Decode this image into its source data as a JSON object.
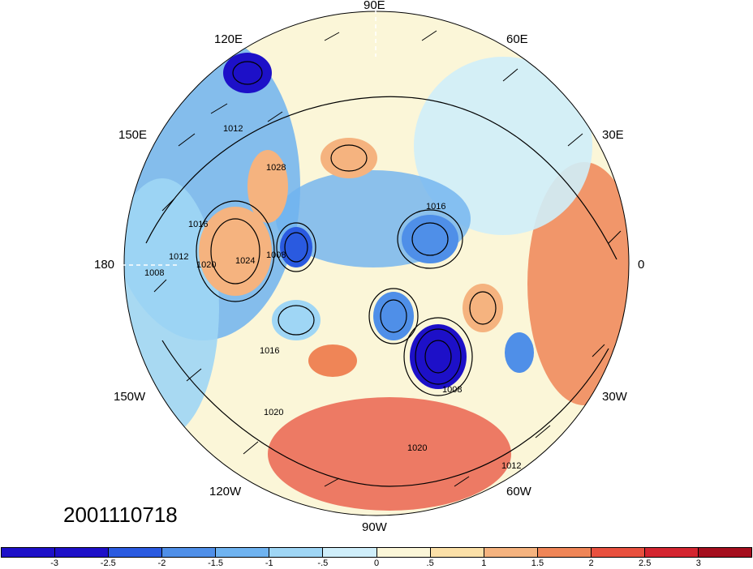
{
  "title": "",
  "timestamp": "2001110718",
  "longitude_labels": {
    "n": "90E",
    "s": "90W",
    "e": "0",
    "w": "180",
    "ne": "60E",
    "nw": "120E",
    "ene": "30E",
    "wnw": "150E",
    "ese": "30W",
    "wsw": "150W",
    "se": "60W",
    "sw": "120W"
  },
  "contour_labels": [
    "1008",
    "1012",
    "1016",
    "1020",
    "1024",
    "1028",
    "1008",
    "1012",
    "1016",
    "1020",
    "1016",
    "1008",
    "1012",
    "1020"
  ],
  "colorbar": {
    "ticks": [
      "-3",
      "-2.5",
      "-2",
      "-1.5",
      "-1",
      "-.5",
      "0",
      ".5",
      "1",
      "1.5",
      "2",
      "2.5",
      "3"
    ],
    "colors": [
      "#1d10c8",
      "#2a5ae0",
      "#4f8fe8",
      "#6fb3f0",
      "#9fd6f5",
      "#cfeefa",
      "#fbf6d8",
      "#fbe0a8",
      "#f5b37f",
      "#ef8557",
      "#e8503e",
      "#d42530",
      "#a50f1e"
    ]
  }
}
